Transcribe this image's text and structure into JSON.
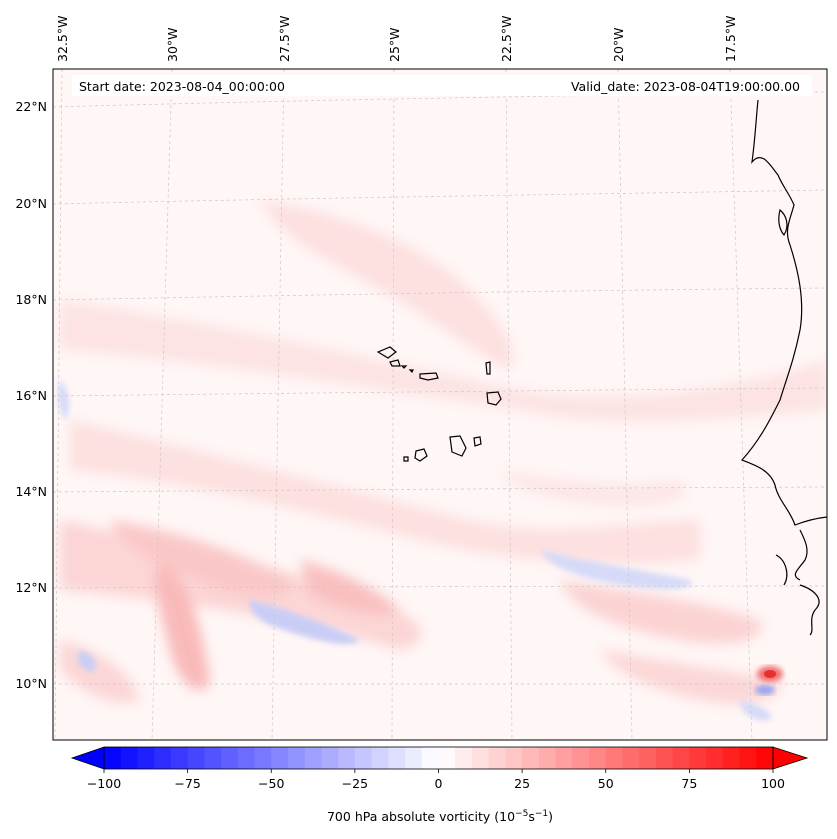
{
  "map": {
    "start_date": "Start date: 2023-08-04_00:00:00",
    "valid_date": "Valid_date: 2023-08-04T19:00:00.00",
    "lon_labels": [
      "32.5°W",
      "30°W",
      "27.5°W",
      "25°W",
      "22.5°W",
      "20°W",
      "17.5°W"
    ],
    "lat_labels": [
      "22°N",
      "20°N",
      "18°N",
      "16°N",
      "14°N",
      "12°N",
      "10°N"
    ],
    "gridlines": "dashed-light-grey",
    "coastline_color": "#000000"
  },
  "colorbar": {
    "title": "700 hPa absolute vorticity (10",
    "exp1": "−5",
    "mid": "s",
    "exp2": "−1",
    "close": ")",
    "tick_labels": [
      "−100",
      "−75",
      "−50",
      "−25",
      "0",
      "25",
      "50",
      "75",
      "100"
    ],
    "tick_values": [
      -100,
      -75,
      -50,
      -25,
      0,
      25,
      50,
      75,
      100
    ],
    "min": -100,
    "max": 100,
    "color_low": "#0000ff",
    "color_mid": "#ffffff",
    "color_high": "#ff0000"
  }
}
